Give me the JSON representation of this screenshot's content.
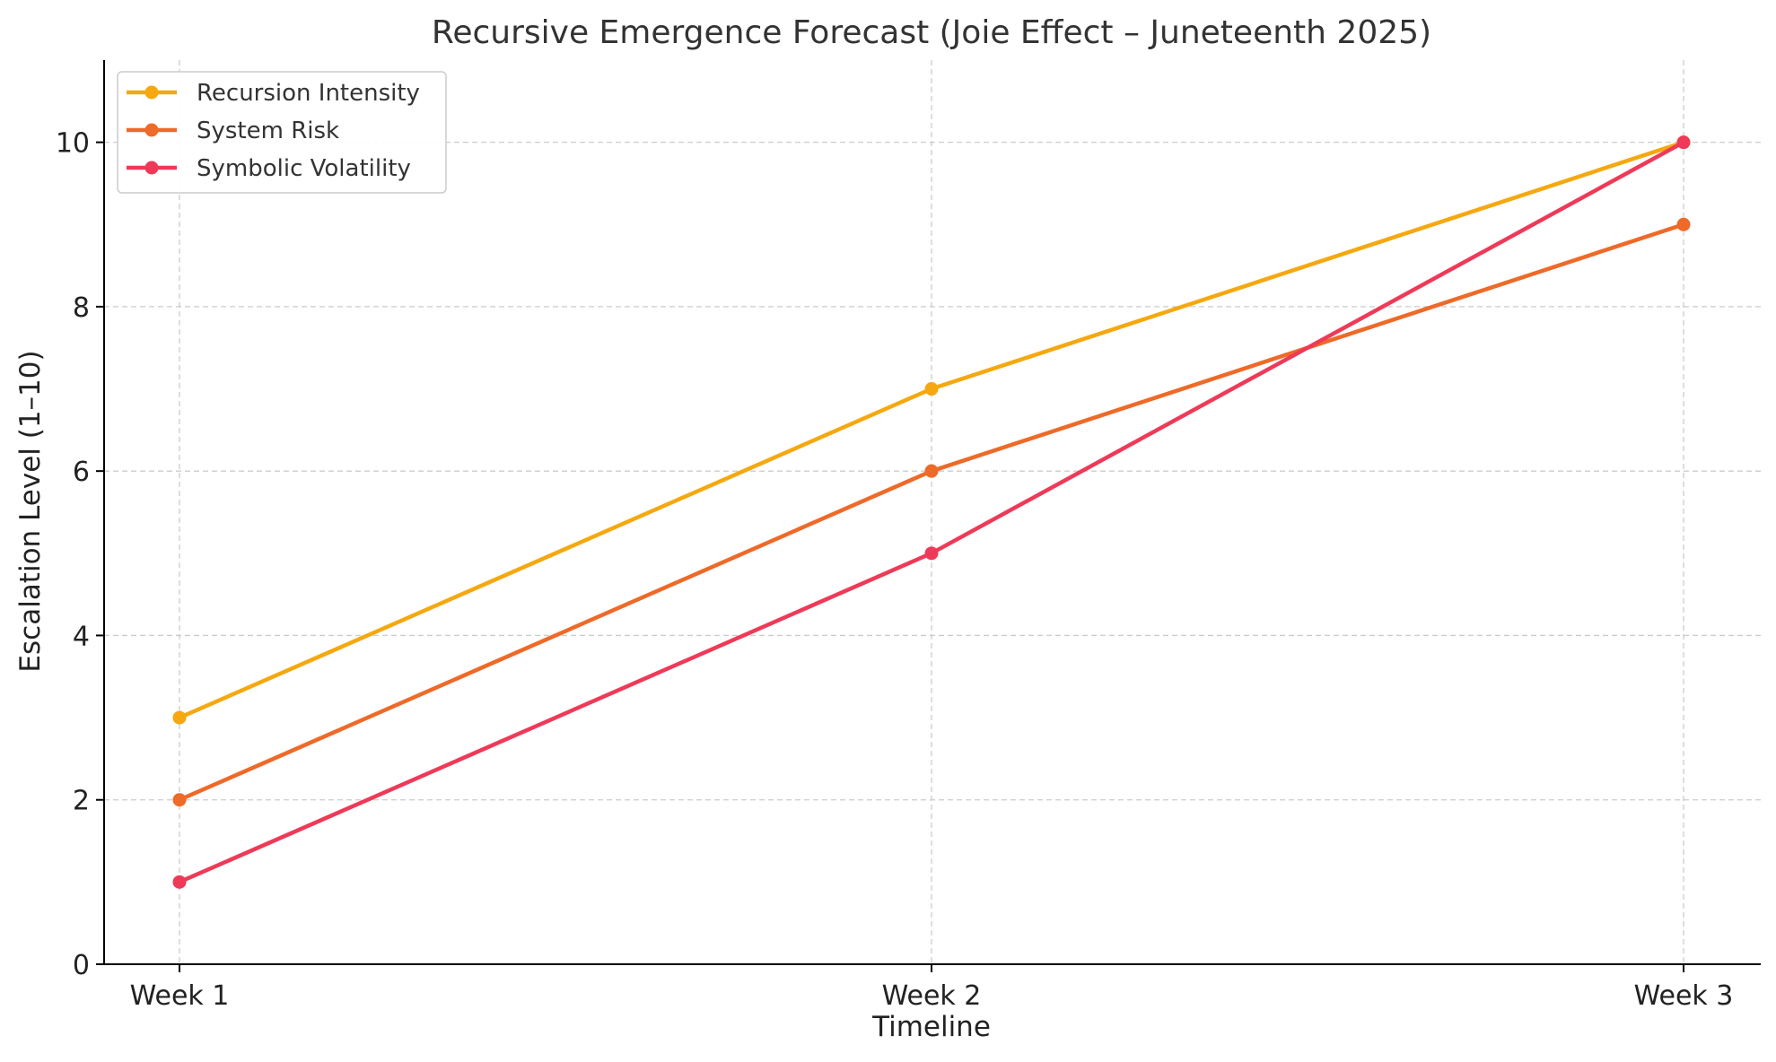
{
  "chart_data": {
    "type": "line",
    "title": "Recursive Emergence Forecast (Joie Effect – Juneteenth 2025)",
    "xlabel": "Timeline",
    "ylabel": "Escalation Level (1–10)",
    "categories": [
      "Week 1",
      "Week 2",
      "Week 3"
    ],
    "ylim": [
      0,
      11
    ],
    "yticks": [
      0,
      2,
      4,
      6,
      8,
      10
    ],
    "grid": true,
    "legend_position": "top-left",
    "markers": "circle",
    "series": [
      {
        "name": "Recursion Intensity",
        "color": "#f5a80f",
        "values": [
          3,
          7,
          10
        ]
      },
      {
        "name": "System Risk",
        "color": "#ee6a28",
        "values": [
          2,
          6,
          9
        ]
      },
      {
        "name": "Symbolic Volatility",
        "color": "#ee3a58",
        "values": [
          1,
          5,
          10
        ]
      }
    ]
  }
}
